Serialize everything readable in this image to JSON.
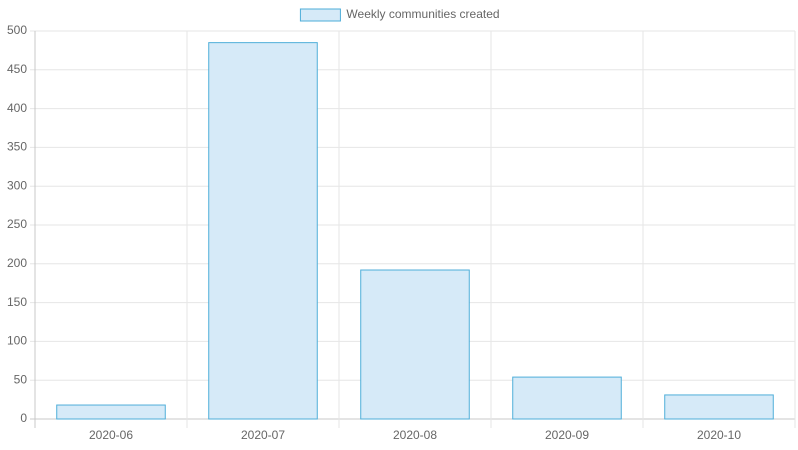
{
  "chart_data": {
    "type": "bar",
    "categories": [
      "2020-06",
      "2020-07",
      "2020-08",
      "2020-09",
      "2020-10"
    ],
    "series": [
      {
        "name": "Weekly communities created",
        "color": "#d6eaf8",
        "border_color": "#4eaed9",
        "values": [
          18,
          485,
          192,
          54,
          31
        ]
      }
    ],
    "ylim": [
      0,
      500
    ],
    "yticks": [
      0,
      50,
      100,
      150,
      200,
      250,
      300,
      350,
      400,
      450,
      500
    ],
    "grid": true,
    "legend": "top"
  }
}
